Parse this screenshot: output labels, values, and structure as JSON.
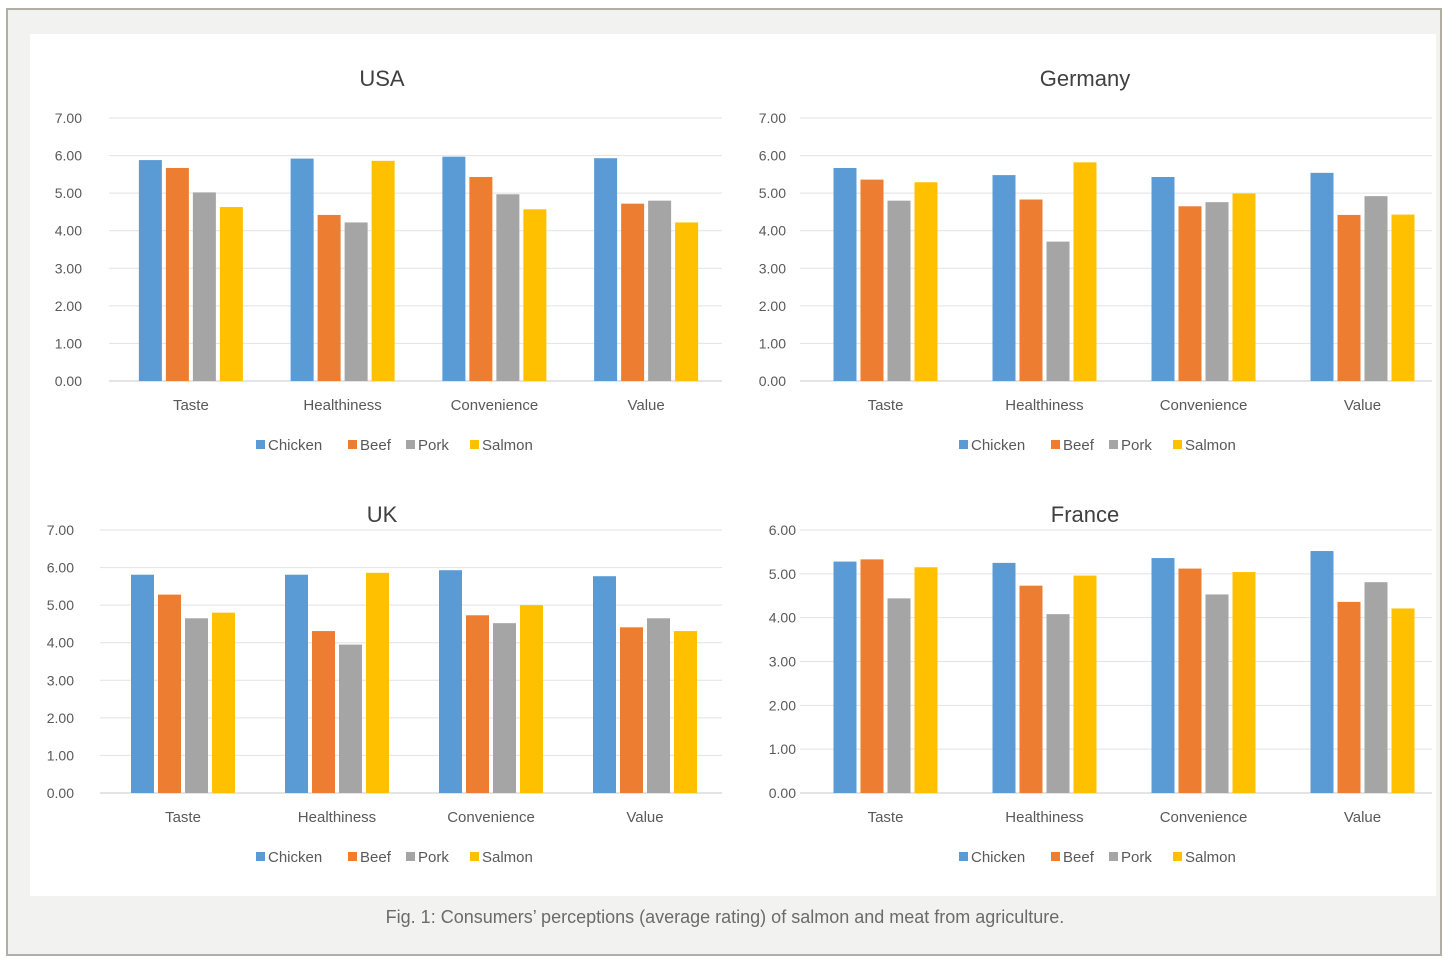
{
  "caption": "Fig. 1: Consumers’ perceptions (average rating) of salmon and meat from agriculture.",
  "colors": {
    "Chicken": "#5b9bd5",
    "Beef": "#ed7d31",
    "Pork": "#a5a5a5",
    "Salmon": "#ffc000"
  },
  "chart_data": [
    {
      "type": "bar",
      "title": "USA",
      "categories": [
        "Taste",
        "Healthiness",
        "Convenience",
        "Value"
      ],
      "yticks": [
        "0.00",
        "1.00",
        "2.00",
        "3.00",
        "4.00",
        "5.00",
        "6.00",
        "7.00"
      ],
      "ylim": [
        0,
        7
      ],
      "legend_position": "bottom",
      "grid": true,
      "series": [
        {
          "name": "Chicken",
          "values": [
            5.88,
            5.92,
            5.97,
            5.93
          ]
        },
        {
          "name": "Beef",
          "values": [
            5.67,
            4.42,
            5.43,
            4.72
          ]
        },
        {
          "name": "Pork",
          "values": [
            5.02,
            4.22,
            4.97,
            4.8
          ]
        },
        {
          "name": "Salmon",
          "values": [
            4.63,
            5.86,
            4.57,
            4.22
          ]
        }
      ]
    },
    {
      "type": "bar",
      "title": "Germany",
      "categories": [
        "Taste",
        "Healthiness",
        "Convenience",
        "Value"
      ],
      "yticks": [
        "0.00",
        "1.00",
        "2.00",
        "3.00",
        "4.00",
        "5.00",
        "6.00",
        "7.00"
      ],
      "ylim": [
        0,
        7
      ],
      "legend_position": "bottom",
      "grid": true,
      "series": [
        {
          "name": "Chicken",
          "values": [
            5.67,
            5.48,
            5.43,
            5.54
          ]
        },
        {
          "name": "Beef",
          "values": [
            5.36,
            4.83,
            4.65,
            4.42
          ]
        },
        {
          "name": "Pork",
          "values": [
            4.8,
            3.71,
            4.76,
            4.92
          ]
        },
        {
          "name": "Salmon",
          "values": [
            5.29,
            5.82,
            4.99,
            4.43
          ]
        }
      ]
    },
    {
      "type": "bar",
      "title": "UK",
      "categories": [
        "Taste",
        "Healthiness",
        "Convenience",
        "Value"
      ],
      "yticks": [
        "0.00",
        "1.00",
        "2.00",
        "3.00",
        "4.00",
        "5.00",
        "6.00",
        "7.00"
      ],
      "ylim": [
        0,
        7
      ],
      "legend_position": "bottom",
      "grid": true,
      "series": [
        {
          "name": "Chicken",
          "values": [
            5.81,
            5.81,
            5.93,
            5.77
          ]
        },
        {
          "name": "Beef",
          "values": [
            5.28,
            4.31,
            4.73,
            4.41
          ]
        },
        {
          "name": "Pork",
          "values": [
            4.65,
            3.95,
            4.52,
            4.65
          ]
        },
        {
          "name": "Salmon",
          "values": [
            4.8,
            5.86,
            5.0,
            4.31
          ]
        }
      ]
    },
    {
      "type": "bar",
      "title": "France",
      "categories": [
        "Taste",
        "Healthiness",
        "Convenience",
        "Value"
      ],
      "yticks": [
        "0.00",
        "1.00",
        "2.00",
        "3.00",
        "4.00",
        "5.00",
        "6.00"
      ],
      "ylim": [
        0,
        6
      ],
      "legend_position": "bottom",
      "grid": true,
      "series": [
        {
          "name": "Chicken",
          "values": [
            5.28,
            5.25,
            5.36,
            5.52
          ]
        },
        {
          "name": "Beef",
          "values": [
            5.33,
            4.73,
            5.12,
            4.36
          ]
        },
        {
          "name": "Pork",
          "values": [
            4.44,
            4.08,
            4.53,
            4.81
          ]
        },
        {
          "name": "Salmon",
          "values": [
            5.15,
            4.96,
            5.04,
            4.21
          ]
        }
      ]
    }
  ]
}
